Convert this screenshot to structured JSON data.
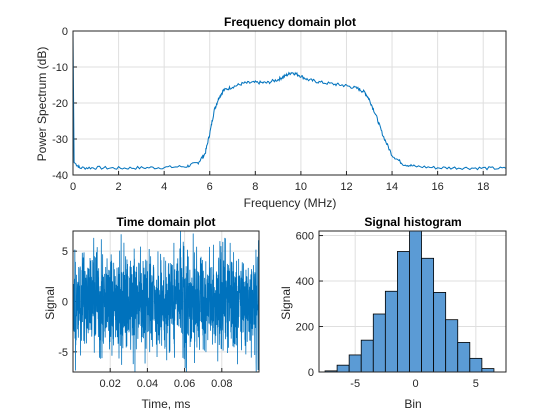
{
  "chart_data": [
    {
      "type": "line",
      "title": "Frequency domain plot",
      "xlabel": "Frequency (MHz)",
      "ylabel": "Power Spectrum (dB)",
      "xlim": [
        0,
        19
      ],
      "ylim": [
        -40,
        0
      ],
      "xticks": [
        "0",
        "2",
        "4",
        "6",
        "8",
        "10",
        "12",
        "14",
        "16",
        "18"
      ],
      "yticks": [
        "0",
        "-10",
        "-20",
        "-30",
        "-40"
      ],
      "grid": true,
      "color": "#0072bd",
      "series": [
        {
          "x": [
            0.0,
            0.05,
            0.3,
            1,
            2,
            3,
            4,
            5,
            5.5,
            5.8,
            6.0,
            6.2,
            6.4,
            6.6,
            7.0,
            7.5,
            8.0,
            8.5,
            9.0,
            9.3,
            9.6,
            9.9,
            10.3,
            10.8,
            11.5,
            12.0,
            12.5,
            12.8,
            13.0,
            13.3,
            13.6,
            14.0,
            14.5,
            15,
            16,
            17,
            18,
            19
          ],
          "y": [
            0,
            -36.5,
            -38.0,
            -38.0,
            -38.1,
            -38.0,
            -37.9,
            -37.6,
            -36.5,
            -34.0,
            -28.5,
            -22.0,
            -18.5,
            -16.5,
            -15.5,
            -14.5,
            -14.3,
            -14.4,
            -13.5,
            -12.5,
            -11.5,
            -12.2,
            -13.5,
            -14.2,
            -14.8,
            -15.2,
            -16.0,
            -17.0,
            -19.0,
            -23.5,
            -29.0,
            -34.5,
            -37.0,
            -37.6,
            -38.0,
            -38.0,
            -38.1,
            -38.2
          ]
        }
      ]
    },
    {
      "type": "line",
      "title": "Time domain plot",
      "xlabel": "Time, ms",
      "ylabel": "Signal",
      "xlim": [
        0.0,
        0.1
      ],
      "ylim": [
        -7,
        7
      ],
      "xticks": [
        "0.02",
        "0.04",
        "0.06",
        "0.08"
      ],
      "yticks": [
        "5",
        "0",
        "-5"
      ],
      "grid": true,
      "color": "#0072bd",
      "noise": {
        "mean": -0.2,
        "std": 2.5,
        "min": -7,
        "max": 7
      }
    },
    {
      "type": "bar",
      "title": "Signal histogram",
      "xlabel": "Bin",
      "ylabel": "Signal",
      "xlim": [
        -8,
        7.5
      ],
      "ylim": [
        0,
        620
      ],
      "xticks": [
        "-5",
        "0",
        "5"
      ],
      "yticks": [
        "600",
        "400",
        "200",
        "0"
      ],
      "grid": true,
      "color": "#5b9bd5",
      "bin_edges": [
        -7.5,
        -6.5,
        -5.5,
        -4.5,
        -3.5,
        -2.5,
        -1.5,
        -0.5,
        0.5,
        1.5,
        2.5,
        3.5,
        4.5,
        5.5,
        6.5
      ],
      "values": [
        5,
        30,
        75,
        140,
        255,
        355,
        530,
        620,
        500,
        350,
        230,
        130,
        60,
        15
      ]
    }
  ]
}
